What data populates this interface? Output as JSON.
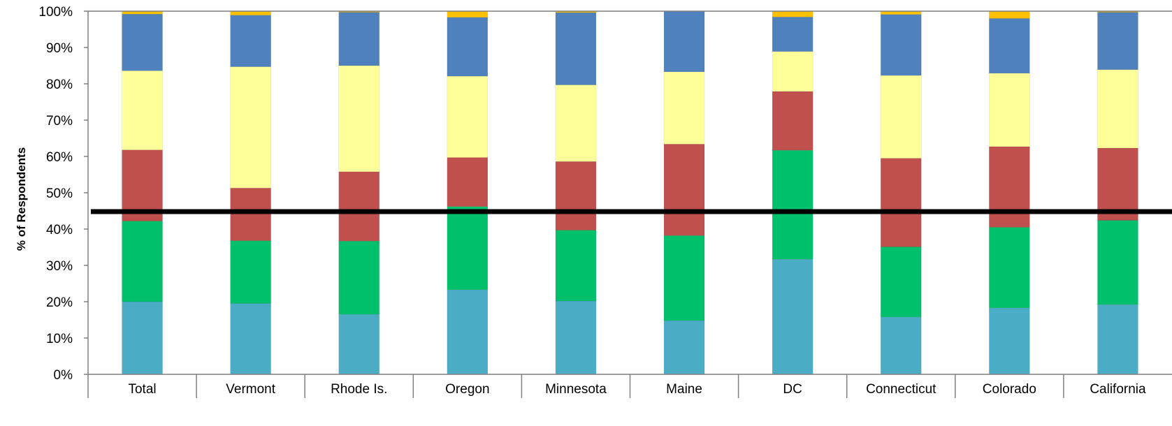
{
  "chart_data": {
    "type": "bar",
    "stacked": true,
    "title": "",
    "xlabel": "",
    "ylabel": "% of Respondents",
    "ylim": [
      0,
      100
    ],
    "yticks": [
      "0%",
      "10%",
      "20%",
      "30%",
      "40%",
      "50%",
      "60%",
      "70%",
      "80%",
      "90%",
      "100%"
    ],
    "grid": false,
    "legend": "none",
    "categories": [
      "Total",
      "Vermont",
      "Rhode Is.",
      "Oregon",
      "Minnesota",
      "Maine",
      "DC",
      "Connecticut",
      "Colorado",
      "California"
    ],
    "series": [
      {
        "color": "#4bacc6",
        "values": [
          20,
          19.5,
          16.5,
          23.3,
          20.2,
          14.8,
          31.7,
          15.8,
          18.3,
          19.2
        ]
      },
      {
        "color": "#00c06b",
        "values": [
          22.2,
          17.3,
          20.2,
          22.9,
          19.5,
          23.4,
          30,
          19.3,
          22.2,
          23.2
        ]
      },
      {
        "color": "#c0504d",
        "values": [
          19.6,
          14.5,
          19.1,
          13.5,
          18.9,
          25.2,
          16.2,
          24.4,
          22.2,
          19.9
        ]
      },
      {
        "color": "#ffff99",
        "values": [
          21.8,
          33.4,
          29.2,
          22.4,
          21.1,
          19.9,
          11,
          22.8,
          20.2,
          21.6
        ]
      },
      {
        "color": "#4f81bd",
        "values": [
          15.6,
          14.2,
          14.7,
          16.2,
          19.9,
          16.7,
          9.5,
          16.8,
          15.1,
          15.8
        ]
      },
      {
        "color": "#ffc000",
        "values": [
          0.8,
          1.1,
          0.3,
          1.7,
          0.4,
          0,
          1.6,
          0.9,
          2,
          0.3
        ]
      }
    ],
    "reference_line": {
      "value": 44.8,
      "color": "#000000"
    }
  }
}
